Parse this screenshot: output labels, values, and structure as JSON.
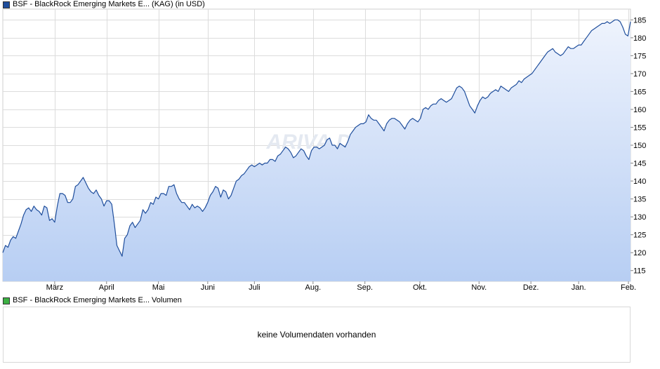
{
  "legend": {
    "price_label": "BSF - BlackRock Emerging Markets E... (KAG) (in USD)",
    "price_color": "#1f4e9c",
    "volume_label": "BSF - BlackRock Emerging Markets E... Volumen",
    "volume_color": "#3cb043"
  },
  "volume_panel": {
    "message": "keine Volumendaten vorhanden"
  },
  "watermark": "ARIVA.DE",
  "chart_data": {
    "type": "area",
    "title": "",
    "xlabel": "",
    "ylabel": "",
    "ylim": [
      112,
      188
    ],
    "yticks": [
      115,
      120,
      125,
      130,
      135,
      140,
      145,
      150,
      155,
      160,
      165,
      170,
      175,
      180,
      185
    ],
    "xlim": [
      0,
      12.1
    ],
    "xticks": [
      {
        "label": "März",
        "x": 1.0
      },
      {
        "label": "April",
        "x": 2.0
      },
      {
        "label": "Mai",
        "x": 3.0
      },
      {
        "label": "Juni",
        "x": 3.95
      },
      {
        "label": "Juli",
        "x": 4.85
      },
      {
        "label": "Aug.",
        "x": 5.98
      },
      {
        "label": "Sep.",
        "x": 6.98
      },
      {
        "label": "Okt.",
        "x": 8.04
      },
      {
        "label": "Nov.",
        "x": 9.18
      },
      {
        "label": "Dez.",
        "x": 10.18
      },
      {
        "label": "Jan.",
        "x": 11.1
      },
      {
        "label": "Feb.",
        "x": 12.06
      }
    ],
    "grid": true,
    "line_color": "#1f4e9c",
    "fill_top": "#eef3fd",
    "fill_bottom": "#b7cef3",
    "series": [
      {
        "values": [
          [
            0.0,
            120
          ],
          [
            0.05,
            122
          ],
          [
            0.1,
            121.5
          ],
          [
            0.15,
            123.5
          ],
          [
            0.2,
            124.5
          ],
          [
            0.25,
            124
          ],
          [
            0.3,
            126
          ],
          [
            0.35,
            128
          ],
          [
            0.4,
            130.5
          ],
          [
            0.45,
            132
          ],
          [
            0.5,
            132.5
          ],
          [
            0.55,
            131.5
          ],
          [
            0.6,
            133
          ],
          [
            0.65,
            132
          ],
          [
            0.7,
            131.5
          ],
          [
            0.75,
            130.5
          ],
          [
            0.8,
            133
          ],
          [
            0.85,
            132.5
          ],
          [
            0.9,
            129
          ],
          [
            0.95,
            129.5
          ],
          [
            1.0,
            128.5
          ],
          [
            1.05,
            133
          ],
          [
            1.1,
            136.5
          ],
          [
            1.15,
            136.5
          ],
          [
            1.2,
            136
          ],
          [
            1.25,
            134
          ],
          [
            1.3,
            134
          ],
          [
            1.35,
            135
          ],
          [
            1.4,
            138.5
          ],
          [
            1.45,
            139
          ],
          [
            1.5,
            140
          ],
          [
            1.55,
            141
          ],
          [
            1.6,
            139.5
          ],
          [
            1.65,
            138
          ],
          [
            1.7,
            137
          ],
          [
            1.75,
            136.5
          ],
          [
            1.8,
            137.5
          ],
          [
            1.85,
            136
          ],
          [
            1.9,
            135
          ],
          [
            1.95,
            133
          ],
          [
            2.0,
            134.5
          ],
          [
            2.05,
            134.5
          ],
          [
            2.1,
            133.5
          ],
          [
            2.15,
            128
          ],
          [
            2.2,
            122
          ],
          [
            2.25,
            120.5
          ],
          [
            2.3,
            119
          ],
          [
            2.35,
            124
          ],
          [
            2.4,
            125
          ],
          [
            2.45,
            127.5
          ],
          [
            2.5,
            128.5
          ],
          [
            2.55,
            127
          ],
          [
            2.6,
            128
          ],
          [
            2.65,
            129
          ],
          [
            2.7,
            132
          ],
          [
            2.75,
            131
          ],
          [
            2.8,
            132
          ],
          [
            2.85,
            134
          ],
          [
            2.9,
            133.5
          ],
          [
            2.95,
            135.5
          ],
          [
            3.0,
            135
          ],
          [
            3.05,
            136.5
          ],
          [
            3.1,
            136.5
          ],
          [
            3.15,
            136
          ],
          [
            3.2,
            138.5
          ],
          [
            3.25,
            138.5
          ],
          [
            3.3,
            139
          ],
          [
            3.35,
            136.5
          ],
          [
            3.4,
            135
          ],
          [
            3.45,
            134
          ],
          [
            3.5,
            134
          ],
          [
            3.55,
            133
          ],
          [
            3.6,
            132
          ],
          [
            3.65,
            133.5
          ],
          [
            3.7,
            132.5
          ],
          [
            3.75,
            133
          ],
          [
            3.8,
            132.5
          ],
          [
            3.85,
            131.5
          ],
          [
            3.9,
            132.5
          ],
          [
            3.95,
            134
          ],
          [
            4.0,
            136
          ],
          [
            4.05,
            137
          ],
          [
            4.1,
            138.5
          ],
          [
            4.15,
            138
          ],
          [
            4.2,
            135.5
          ],
          [
            4.25,
            137.5
          ],
          [
            4.3,
            137
          ],
          [
            4.35,
            135
          ],
          [
            4.4,
            136
          ],
          [
            4.45,
            138
          ],
          [
            4.5,
            140
          ],
          [
            4.55,
            140.5
          ],
          [
            4.6,
            141.5
          ],
          [
            4.65,
            142
          ],
          [
            4.7,
            143
          ],
          [
            4.75,
            144
          ],
          [
            4.8,
            144.5
          ],
          [
            4.85,
            144
          ],
          [
            4.9,
            144.5
          ],
          [
            4.95,
            145
          ],
          [
            5.0,
            144.5
          ],
          [
            5.05,
            145
          ],
          [
            5.1,
            145
          ],
          [
            5.15,
            146
          ],
          [
            5.2,
            146
          ],
          [
            5.25,
            145.5
          ],
          [
            5.3,
            147
          ],
          [
            5.35,
            147.5
          ],
          [
            5.4,
            148.5
          ],
          [
            5.45,
            149.5
          ],
          [
            5.5,
            149
          ],
          [
            5.55,
            148
          ],
          [
            5.6,
            146.5
          ],
          [
            5.65,
            147
          ],
          [
            5.7,
            148
          ],
          [
            5.75,
            149
          ],
          [
            5.8,
            148.5
          ],
          [
            5.85,
            147
          ],
          [
            5.9,
            146
          ],
          [
            5.95,
            148.5
          ],
          [
            6.0,
            149.5
          ],
          [
            6.05,
            149.5
          ],
          [
            6.1,
            149
          ],
          [
            6.15,
            149.5
          ],
          [
            6.2,
            150
          ],
          [
            6.25,
            151.5
          ],
          [
            6.3,
            152
          ],
          [
            6.35,
            150
          ],
          [
            6.4,
            150
          ],
          [
            6.45,
            149
          ],
          [
            6.5,
            150.5
          ],
          [
            6.55,
            150
          ],
          [
            6.6,
            149.5
          ],
          [
            6.65,
            151
          ],
          [
            6.7,
            153
          ],
          [
            6.75,
            154
          ],
          [
            6.8,
            155
          ],
          [
            6.85,
            155.5
          ],
          [
            6.9,
            156
          ],
          [
            6.95,
            156
          ],
          [
            7.0,
            156.5
          ],
          [
            7.05,
            158.5
          ],
          [
            7.1,
            157.5
          ],
          [
            7.15,
            157
          ],
          [
            7.2,
            157
          ],
          [
            7.25,
            156
          ],
          [
            7.3,
            155
          ],
          [
            7.35,
            154
          ],
          [
            7.4,
            156
          ],
          [
            7.45,
            157
          ],
          [
            7.5,
            157.5
          ],
          [
            7.55,
            157.5
          ],
          [
            7.6,
            157
          ],
          [
            7.65,
            156.5
          ],
          [
            7.7,
            155.5
          ],
          [
            7.75,
            154.5
          ],
          [
            7.8,
            156
          ],
          [
            7.85,
            157
          ],
          [
            7.9,
            157.5
          ],
          [
            7.95,
            157
          ],
          [
            8.0,
            156.5
          ],
          [
            8.05,
            157.5
          ],
          [
            8.1,
            160
          ],
          [
            8.15,
            160.5
          ],
          [
            8.2,
            160
          ],
          [
            8.25,
            161
          ],
          [
            8.3,
            161.5
          ],
          [
            8.35,
            161.5
          ],
          [
            8.4,
            162.5
          ],
          [
            8.45,
            163
          ],
          [
            8.5,
            162.5
          ],
          [
            8.55,
            162
          ],
          [
            8.6,
            162.5
          ],
          [
            8.65,
            163
          ],
          [
            8.7,
            164.5
          ],
          [
            8.75,
            166
          ],
          [
            8.8,
            166.5
          ],
          [
            8.85,
            166
          ],
          [
            8.9,
            165
          ],
          [
            8.95,
            163
          ],
          [
            9.0,
            161
          ],
          [
            9.05,
            160
          ],
          [
            9.1,
            159
          ],
          [
            9.15,
            161
          ],
          [
            9.2,
            162.5
          ],
          [
            9.25,
            163.5
          ],
          [
            9.3,
            163
          ],
          [
            9.35,
            163.5
          ],
          [
            9.4,
            164.5
          ],
          [
            9.45,
            165
          ],
          [
            9.5,
            165.5
          ],
          [
            9.55,
            165
          ],
          [
            9.6,
            166.5
          ],
          [
            9.65,
            166
          ],
          [
            9.7,
            165.5
          ],
          [
            9.75,
            165
          ],
          [
            9.8,
            166
          ],
          [
            9.85,
            166.5
          ],
          [
            9.9,
            167
          ],
          [
            9.95,
            168
          ],
          [
            10.0,
            167.5
          ],
          [
            10.05,
            168.5
          ],
          [
            10.1,
            169
          ],
          [
            10.15,
            169.5
          ],
          [
            10.2,
            170
          ],
          [
            10.25,
            171
          ],
          [
            10.3,
            172
          ],
          [
            10.35,
            173
          ],
          [
            10.4,
            174
          ],
          [
            10.45,
            175
          ],
          [
            10.5,
            176
          ],
          [
            10.55,
            176.5
          ],
          [
            10.6,
            177
          ],
          [
            10.65,
            176
          ],
          [
            10.7,
            175.5
          ],
          [
            10.75,
            175
          ],
          [
            10.8,
            175.5
          ],
          [
            10.85,
            176.5
          ],
          [
            10.9,
            177.5
          ],
          [
            10.95,
            177
          ],
          [
            11.0,
            177
          ],
          [
            11.05,
            177.5
          ],
          [
            11.1,
            178
          ],
          [
            11.15,
            178
          ],
          [
            11.2,
            179
          ],
          [
            11.25,
            180
          ],
          [
            11.3,
            181
          ],
          [
            11.35,
            182
          ],
          [
            11.4,
            182.5
          ],
          [
            11.45,
            183
          ],
          [
            11.5,
            183.5
          ],
          [
            11.55,
            184
          ],
          [
            11.6,
            184
          ],
          [
            11.65,
            184.5
          ],
          [
            11.7,
            184
          ],
          [
            11.75,
            184.5
          ],
          [
            11.8,
            185
          ],
          [
            11.85,
            185
          ],
          [
            11.9,
            184.5
          ],
          [
            11.95,
            183
          ],
          [
            12.0,
            181
          ],
          [
            12.05,
            180.5
          ],
          [
            12.1,
            184.5
          ]
        ]
      }
    ]
  }
}
